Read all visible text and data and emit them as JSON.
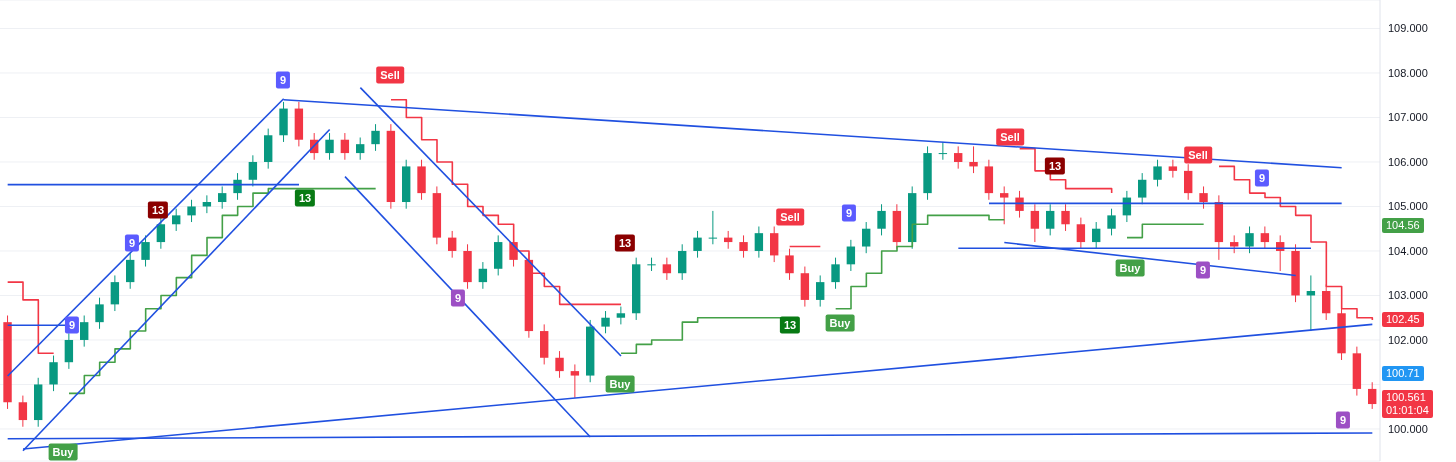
{
  "chart_data": {
    "type": "candlestick",
    "categories": [
      null,
      null,
      null,
      null,
      null,
      null,
      null,
      null,
      null,
      null,
      null,
      null,
      null,
      null,
      null,
      null,
      null,
      null,
      null,
      null,
      null,
      null,
      null,
      null,
      null,
      null,
      null,
      null,
      null,
      null,
      null,
      null,
      null,
      null,
      null,
      null,
      null,
      null,
      null,
      null,
      null,
      null,
      null,
      null,
      null,
      null,
      null,
      null,
      null,
      null,
      null,
      null,
      null,
      null,
      null,
      null,
      null,
      null,
      null,
      null,
      null,
      null,
      null,
      null,
      null,
      null,
      null,
      null,
      null,
      null,
      null,
      null,
      null,
      null,
      null,
      null,
      null,
      null,
      null,
      null,
      null,
      null,
      null,
      null,
      null,
      null,
      null,
      null,
      null,
      null
    ],
    "ylim": [
      99.28,
      109.64
    ],
    "yticks": [
      {
        "value": 100,
        "label": "100.000"
      },
      {
        "value": 101,
        "label": null
      },
      {
        "value": 102,
        "label": "102.000"
      },
      {
        "value": 103,
        "label": "103.000"
      },
      {
        "value": 104,
        "label": "104.000"
      },
      {
        "value": 105,
        "label": "105.000"
      },
      {
        "value": 106,
        "label": "106.000"
      },
      {
        "value": 107,
        "label": "107.000"
      },
      {
        "value": 108,
        "label": "108.000"
      },
      {
        "value": 109,
        "label": "109.000"
      }
    ],
    "grid": "y",
    "tick_labels": "y",
    "series": [
      {
        "colors": [
          "#f23645",
          "#f23645",
          "#089981",
          "#089981",
          "#089981",
          "#089981",
          "#089981",
          "#089981",
          "#089981",
          "#089981",
          "#089981",
          "#089981",
          "#089981",
          "#089981",
          "#089981",
          "#089981",
          "#089981",
          "#089981",
          "#089981",
          "#f23645",
          "#f23645",
          "#089981",
          "#f23645",
          "#089981",
          "#089981",
          "#f23645",
          "#089981",
          "#f23645",
          "#f23645",
          "#f23645",
          "#f23645",
          "#089981",
          "#089981",
          "#f23645",
          "#f23645",
          "#f23645",
          "#f23645",
          "#f23645",
          "#089981",
          "#089981",
          "#089981",
          "#089981",
          "#089981",
          "#f23645",
          "#089981",
          "#089981",
          "#089981",
          "#f23645",
          "#f23645",
          "#089981",
          "#f23645",
          "#f23645",
          "#f23645",
          "#089981",
          "#089981",
          "#089981",
          "#089981",
          "#089981",
          "#f23645",
          "#089981",
          "#089981",
          "#089981",
          "#f23645",
          "#f23645",
          "#f23645",
          "#f23645",
          "#f23645",
          "#f23645",
          "#089981",
          "#f23645",
          "#f23645",
          "#089981",
          "#089981",
          "#089981",
          "#089981",
          "#089981",
          "#f23645",
          "#f23645",
          "#f23645",
          "#f23645",
          "#f23645",
          "#089981",
          "#f23645",
          "#f23645",
          "#f23645",
          "#089981",
          "#f23645",
          "#f23645",
          "#f23645",
          "#f23645"
        ],
        "ohlc": [
          [
            102.4,
            102.55,
            100.45,
            100.6
          ],
          [
            100.6,
            100.75,
            100.05,
            100.2
          ],
          [
            100.2,
            101.15,
            100.05,
            101.0
          ],
          [
            101.0,
            101.65,
            100.85,
            101.5
          ],
          [
            101.5,
            102.15,
            101.35,
            102.0
          ],
          [
            102.0,
            102.55,
            101.85,
            102.4
          ],
          [
            102.4,
            102.95,
            102.25,
            102.8
          ],
          [
            102.8,
            103.45,
            102.65,
            103.3
          ],
          [
            103.3,
            103.95,
            103.15,
            103.8
          ],
          [
            103.8,
            104.35,
            103.65,
            104.2
          ],
          [
            104.2,
            104.75,
            104.05,
            104.6
          ],
          [
            104.6,
            104.95,
            104.45,
            104.8
          ],
          [
            104.8,
            105.15,
            104.65,
            105.0
          ],
          [
            105.0,
            105.25,
            104.85,
            105.1
          ],
          [
            105.1,
            105.45,
            104.95,
            105.3
          ],
          [
            105.3,
            105.75,
            105.15,
            105.6
          ],
          [
            105.6,
            106.15,
            105.45,
            106.0
          ],
          [
            106.0,
            106.75,
            105.85,
            106.6
          ],
          [
            106.6,
            107.35,
            106.45,
            107.2
          ],
          [
            107.2,
            107.35,
            106.35,
            106.5
          ],
          [
            106.5,
            106.65,
            106.05,
            106.2
          ],
          [
            106.2,
            106.65,
            106.05,
            106.5
          ],
          [
            106.5,
            106.65,
            106.05,
            106.2
          ],
          [
            106.2,
            106.55,
            106.05,
            106.4
          ],
          [
            106.4,
            106.85,
            106.25,
            106.7
          ],
          [
            106.7,
            106.85,
            104.95,
            105.1
          ],
          [
            105.1,
            106.05,
            104.95,
            105.9
          ],
          [
            105.9,
            106.05,
            105.15,
            105.3
          ],
          [
            105.3,
            105.45,
            104.15,
            104.3
          ],
          [
            104.3,
            104.45,
            103.85,
            104.0
          ],
          [
            104.0,
            104.15,
            103.15,
            103.3
          ],
          [
            103.3,
            103.75,
            103.15,
            103.6
          ],
          [
            103.6,
            104.35,
            103.45,
            104.2
          ],
          [
            104.2,
            104.35,
            103.65,
            103.8
          ],
          [
            103.8,
            103.95,
            102.05,
            102.2
          ],
          [
            102.2,
            102.35,
            101.45,
            101.6
          ],
          [
            101.6,
            101.75,
            101.15,
            101.3
          ],
          [
            101.3,
            101.45,
            100.7,
            101.2
          ],
          [
            101.2,
            102.45,
            101.05,
            102.3
          ],
          [
            102.3,
            102.65,
            102.15,
            102.5
          ],
          [
            102.5,
            102.75,
            102.35,
            102.6
          ],
          [
            102.6,
            103.85,
            102.45,
            103.7
          ],
          [
            103.7,
            103.85,
            103.55,
            103.7
          ],
          [
            103.7,
            103.85,
            103.35,
            103.5
          ],
          [
            103.5,
            104.15,
            103.35,
            104.0
          ],
          [
            104.0,
            104.45,
            103.85,
            104.3
          ],
          [
            104.3,
            104.9,
            104.15,
            104.3
          ],
          [
            104.3,
            104.45,
            104.05,
            104.2
          ],
          [
            104.2,
            104.35,
            103.85,
            104.0
          ],
          [
            104.0,
            104.55,
            103.85,
            104.4
          ],
          [
            104.4,
            104.55,
            103.75,
            103.9
          ],
          [
            103.9,
            104.05,
            103.35,
            103.5
          ],
          [
            103.5,
            103.65,
            102.75,
            102.9
          ],
          [
            102.9,
            103.45,
            102.75,
            103.3
          ],
          [
            103.3,
            103.85,
            103.15,
            103.7
          ],
          [
            103.7,
            104.25,
            103.55,
            104.1
          ],
          [
            104.1,
            104.65,
            103.95,
            104.5
          ],
          [
            104.5,
            105.05,
            104.35,
            104.9
          ],
          [
            104.9,
            105.05,
            104.05,
            104.2
          ],
          [
            104.2,
            105.45,
            104.05,
            105.3
          ],
          [
            105.3,
            106.35,
            105.15,
            106.2
          ],
          [
            106.2,
            106.45,
            106.05,
            106.2
          ],
          [
            106.2,
            106.35,
            105.85,
            106.0
          ],
          [
            106.0,
            106.35,
            105.75,
            105.9
          ],
          [
            105.9,
            106.05,
            105.15,
            105.3
          ],
          [
            105.3,
            105.45,
            104.6,
            105.2
          ],
          [
            105.2,
            105.35,
            104.75,
            104.9
          ],
          [
            104.9,
            105.05,
            104.2,
            104.5
          ],
          [
            104.5,
            105.05,
            104.35,
            104.9
          ],
          [
            104.9,
            105.05,
            104.45,
            104.6
          ],
          [
            104.6,
            104.75,
            104.05,
            104.2
          ],
          [
            104.2,
            104.65,
            104.05,
            104.5
          ],
          [
            104.5,
            104.95,
            104.35,
            104.8
          ],
          [
            104.8,
            105.35,
            104.65,
            105.2
          ],
          [
            105.2,
            105.75,
            105.05,
            105.6
          ],
          [
            105.6,
            106.05,
            105.45,
            105.9
          ],
          [
            105.9,
            106.05,
            105.65,
            105.8
          ],
          [
            105.8,
            105.95,
            105.15,
            105.3
          ],
          [
            105.3,
            105.45,
            104.95,
            105.1
          ],
          [
            105.1,
            105.25,
            103.8,
            104.2
          ],
          [
            104.2,
            104.35,
            103.95,
            104.1
          ],
          [
            104.1,
            104.55,
            103.95,
            104.4
          ],
          [
            104.4,
            104.55,
            104.05,
            104.2
          ],
          [
            104.2,
            104.35,
            103.55,
            104.0
          ],
          [
            104.0,
            104.15,
            102.85,
            103.0
          ],
          [
            103.0,
            103.45,
            102.2,
            103.1
          ],
          [
            103.1,
            103.25,
            102.45,
            102.6
          ],
          [
            102.6,
            102.75,
            101.55,
            101.7
          ],
          [
            101.7,
            101.85,
            100.75,
            100.9
          ],
          [
            100.9,
            101.05,
            100.45,
            100.56
          ]
        ]
      },
      {
        "type": "step",
        "color": "#f23645",
        "values": [
          103.3,
          102.9,
          101.7,
          101.7,
          null,
          null,
          null,
          null,
          null,
          null,
          null,
          null,
          null,
          null,
          null,
          null,
          null,
          null,
          null,
          null,
          null,
          null,
          null,
          null,
          null,
          107.4,
          107.0,
          106.5,
          106.0,
          105.5,
          105.0,
          104.8,
          104.6,
          104.0,
          103.5,
          103.2,
          102.8,
          102.8,
          102.8,
          102.8,
          102.8,
          null,
          null,
          null,
          null,
          null,
          null,
          null,
          null,
          null,
          null,
          104.1,
          104.1,
          104.1,
          null,
          null,
          null,
          null,
          null,
          null,
          null,
          null,
          null,
          null,
          null,
          null,
          106.3,
          105.8,
          105.6,
          105.4,
          105.4,
          105.4,
          105.3,
          null,
          null,
          null,
          null,
          null,
          null,
          105.9,
          105.6,
          105.3,
          105.2,
          105.0,
          104.8,
          104.2,
          103.2,
          102.7,
          102.5,
          102.45
        ]
      },
      {
        "type": "step",
        "color": "#43a047",
        "values": [
          null,
          null,
          null,
          null,
          100.8,
          101.2,
          101.5,
          101.8,
          102.2,
          102.7,
          103.0,
          103.4,
          103.9,
          104.3,
          104.8,
          105.0,
          105.3,
          105.4,
          105.4,
          105.4,
          105.4,
          105.4,
          105.4,
          105.4,
          105.4,
          null,
          null,
          null,
          null,
          null,
          null,
          null,
          null,
          null,
          null,
          null,
          null,
          null,
          null,
          null,
          101.7,
          101.9,
          102.0,
          102.0,
          102.4,
          102.5,
          102.5,
          102.5,
          102.5,
          102.5,
          102.5,
          102.5,
          null,
          null,
          102.7,
          103.2,
          103.5,
          104.0,
          104.1,
          104.6,
          104.8,
          104.8,
          104.8,
          104.8,
          104.7,
          104.7,
          null,
          null,
          null,
          null,
          null,
          null,
          null,
          104.3,
          104.6,
          104.6,
          104.6,
          104.6,
          104.6,
          null,
          null,
          null,
          null,
          null,
          null,
          null,
          null,
          null,
          null,
          null
        ]
      },
      {
        "type": "line",
        "color": "#2050e0",
        "values": [
          101.19,
          null,
          null,
          null,
          null,
          null,
          null,
          null,
          null,
          null,
          null,
          null,
          null,
          null,
          null,
          null,
          null,
          null,
          107.42,
          null,
          null,
          null,
          null,
          null,
          null,
          null,
          null,
          null,
          null,
          null,
          null,
          null,
          null,
          null,
          null,
          null,
          null,
          null,
          null,
          null,
          null,
          null,
          null,
          null,
          null,
          null,
          null,
          null,
          null,
          null,
          null,
          null,
          null,
          null,
          null,
          null,
          null,
          null,
          null,
          null,
          null,
          null,
          null,
          null,
          null,
          null,
          null,
          null,
          null,
          null,
          null,
          null,
          null,
          null,
          null,
          null,
          null,
          null,
          null,
          null,
          null,
          null,
          null,
          null,
          null,
          null,
          null,
          null,
          null,
          null
        ]
      },
      {
        "type": "line",
        "color": "#2050e0",
        "values": [
          null,
          99.51,
          null,
          null,
          null,
          null,
          null,
          null,
          null,
          null,
          null,
          null,
          null,
          null,
          null,
          null,
          null,
          null,
          null,
          null,
          null,
          106.73,
          null,
          null,
          null,
          null,
          null,
          null,
          null,
          null,
          null,
          null,
          null,
          null,
          null,
          null,
          null,
          null,
          null,
          null,
          null,
          null,
          null,
          null,
          null,
          null,
          null,
          null,
          null,
          null,
          null,
          null,
          null,
          null,
          null,
          null,
          null,
          null,
          null,
          null,
          null,
          null,
          null,
          null,
          null,
          null,
          null,
          null,
          null,
          null,
          null,
          null,
          null,
          null,
          null,
          null,
          null,
          null,
          null,
          null,
          null,
          null,
          null,
          null,
          null,
          null,
          null,
          null,
          null,
          null
        ]
      },
      {
        "type": "line",
        "color": "#2050e0",
        "values": [
          null,
          null,
          null,
          null,
          null,
          null,
          null,
          null,
          null,
          null,
          null,
          null,
          null,
          null,
          null,
          null,
          null,
          null,
          107.4,
          null,
          null,
          null,
          null,
          null,
          null,
          null,
          null,
          null,
          null,
          null,
          null,
          null,
          null,
          null,
          null,
          null,
          null,
          null,
          null,
          null,
          null,
          null,
          null,
          null,
          null,
          null,
          null,
          null,
          null,
          null,
          null,
          null,
          null,
          null,
          null,
          null,
          null,
          null,
          null,
          null,
          null,
          null,
          null,
          null,
          null,
          null,
          null,
          null,
          null,
          null,
          null,
          null,
          null,
          null,
          null,
          null,
          null,
          null,
          null,
          null,
          null,
          null,
          null,
          null,
          null,
          null,
          null,
          105.87,
          null,
          null
        ]
      },
      {
        "type": "line",
        "color": "#2050e0",
        "values": [
          null,
          null,
          null,
          null,
          null,
          null,
          null,
          null,
          null,
          null,
          null,
          null,
          null,
          null,
          null,
          null,
          null,
          null,
          null,
          null,
          null,
          null,
          null,
          107.67,
          null,
          null,
          null,
          null,
          null,
          null,
          null,
          null,
          null,
          null,
          null,
          null,
          null,
          null,
          null,
          null,
          101.64,
          null,
          null,
          null,
          null,
          null,
          null,
          null,
          null,
          null,
          null,
          null,
          null,
          null,
          null,
          null,
          null,
          null,
          null,
          null,
          null,
          null,
          null,
          null,
          null,
          null,
          null,
          null,
          null,
          null,
          null,
          null,
          null,
          null,
          null,
          null,
          null,
          null,
          null,
          null,
          null,
          null,
          null,
          null,
          null,
          null,
          null,
          null,
          null,
          null
        ]
      },
      {
        "type": "line",
        "color": "#2050e0",
        "values": [
          null,
          null,
          null,
          null,
          null,
          null,
          null,
          null,
          null,
          null,
          null,
          null,
          null,
          null,
          null,
          null,
          null,
          null,
          null,
          null,
          null,
          null,
          105.67,
          null,
          null,
          null,
          null,
          null,
          null,
          null,
          null,
          null,
          null,
          null,
          null,
          null,
          null,
          null,
          99.82,
          null,
          null,
          null,
          null,
          null,
          null,
          null,
          null,
          null,
          null,
          null,
          null,
          null,
          null,
          null,
          null,
          null,
          null,
          null,
          null,
          null,
          null,
          null,
          null,
          null,
          null,
          null,
          null,
          null,
          null,
          null,
          null,
          null,
          null,
          null,
          null,
          null,
          null,
          null,
          null,
          null,
          null,
          null,
          null,
          null,
          null,
          null,
          null,
          null,
          null,
          null
        ]
      },
      {
        "type": "line",
        "color": "#2050e0",
        "values": [
          99.78,
          null,
          null,
          null,
          null,
          null,
          null,
          null,
          null,
          null,
          null,
          null,
          null,
          null,
          null,
          null,
          null,
          null,
          null,
          null,
          null,
          null,
          null,
          null,
          null,
          null,
          null,
          null,
          null,
          null,
          null,
          null,
          null,
          null,
          null,
          null,
          null,
          null,
          null,
          null,
          null,
          null,
          null,
          null,
          null,
          null,
          null,
          null,
          null,
          null,
          null,
          null,
          null,
          null,
          null,
          null,
          null,
          null,
          null,
          null,
          null,
          null,
          null,
          null,
          null,
          null,
          null,
          null,
          null,
          null,
          null,
          null,
          null,
          null,
          null,
          null,
          null,
          null,
          null,
          null,
          null,
          null,
          null,
          null,
          null,
          null,
          null,
          null,
          null,
          99.91
        ]
      },
      {
        "type": "line",
        "color": "#2050e0",
        "values": [
          null,
          99.55,
          null,
          null,
          null,
          null,
          null,
          null,
          null,
          null,
          null,
          null,
          null,
          null,
          null,
          null,
          null,
          null,
          null,
          null,
          null,
          null,
          null,
          null,
          null,
          null,
          null,
          null,
          null,
          null,
          null,
          null,
          null,
          null,
          null,
          null,
          null,
          null,
          null,
          null,
          null,
          null,
          null,
          null,
          null,
          null,
          null,
          null,
          null,
          null,
          null,
          null,
          null,
          null,
          null,
          null,
          null,
          null,
          null,
          null,
          null,
          null,
          null,
          null,
          null,
          null,
          null,
          null,
          null,
          null,
          null,
          null,
          null,
          null,
          null,
          null,
          null,
          null,
          null,
          null,
          null,
          null,
          null,
          null,
          null,
          null,
          null,
          null,
          null,
          102.35
        ]
      },
      {
        "type": "line",
        "color": "#2050e0",
        "values": [
          105.49,
          null,
          null,
          null,
          null,
          null,
          null,
          null,
          null,
          null,
          null,
          null,
          null,
          null,
          null,
          null,
          null,
          null,
          null,
          105.49,
          null,
          null,
          null,
          null,
          null,
          null,
          null,
          null,
          null,
          null,
          null,
          null,
          null,
          null,
          null,
          null,
          null,
          null,
          null,
          null,
          null,
          null,
          null,
          null,
          null,
          null,
          null,
          null,
          null,
          null,
          null,
          null,
          null,
          null,
          null,
          null,
          null,
          null,
          null,
          null,
          null,
          null,
          null,
          null,
          null,
          null,
          null,
          null,
          null,
          null,
          null,
          null,
          null,
          null,
          null,
          null,
          null,
          null,
          null,
          null,
          null,
          null,
          null,
          null,
          null,
          null,
          null,
          null,
          null,
          null
        ]
      },
      {
        "type": "line",
        "color": "#2050e0",
        "values": [
          102.33,
          null,
          null,
          null,
          102.33,
          null,
          null,
          null,
          null,
          null,
          null,
          null,
          null,
          null,
          null,
          null,
          null,
          null,
          null,
          null,
          null,
          null,
          null,
          null,
          null,
          null,
          null,
          null,
          null,
          null,
          null,
          null,
          null,
          null,
          null,
          null,
          null,
          null,
          null,
          null,
          null,
          null,
          null,
          null,
          null,
          null,
          null,
          null,
          null,
          null,
          null,
          null,
          null,
          null,
          null,
          null,
          null,
          null,
          null,
          null,
          null,
          null,
          null,
          null,
          null,
          null,
          null,
          null,
          null,
          null,
          null,
          null,
          null,
          null,
          null,
          null,
          null,
          null,
          null,
          null,
          null,
          null,
          null,
          null,
          null,
          null,
          null,
          null,
          null,
          null
        ]
      },
      {
        "type": "line",
        "color": "#2050e0",
        "values": [
          null,
          null,
          null,
          null,
          null,
          null,
          null,
          null,
          null,
          null,
          null,
          null,
          null,
          null,
          null,
          null,
          null,
          null,
          null,
          null,
          null,
          null,
          null,
          null,
          null,
          null,
          null,
          null,
          null,
          null,
          null,
          null,
          null,
          null,
          null,
          null,
          null,
          null,
          null,
          null,
          null,
          null,
          null,
          null,
          null,
          null,
          null,
          null,
          null,
          null,
          null,
          null,
          null,
          null,
          null,
          null,
          null,
          null,
          null,
          null,
          null,
          null,
          null,
          null,
          105.07,
          null,
          null,
          null,
          null,
          null,
          null,
          null,
          null,
          null,
          null,
          null,
          null,
          null,
          null,
          null,
          null,
          null,
          null,
          null,
          null,
          null,
          null,
          105.07,
          null,
          null
        ]
      },
      {
        "type": "line",
        "color": "#2050e0",
        "values": [
          null,
          null,
          null,
          null,
          null,
          null,
          null,
          null,
          null,
          null,
          null,
          null,
          null,
          null,
          null,
          null,
          null,
          null,
          null,
          null,
          null,
          null,
          null,
          null,
          null,
          null,
          null,
          null,
          null,
          null,
          null,
          null,
          null,
          null,
          null,
          null,
          null,
          null,
          null,
          null,
          null,
          null,
          null,
          null,
          null,
          null,
          null,
          null,
          null,
          null,
          null,
          null,
          null,
          null,
          null,
          null,
          null,
          null,
          null,
          null,
          null,
          null,
          104.06,
          null,
          null,
          null,
          null,
          null,
          null,
          null,
          null,
          null,
          null,
          null,
          null,
          null,
          null,
          null,
          null,
          null,
          null,
          null,
          null,
          null,
          null,
          104.06,
          null,
          null,
          null,
          null
        ]
      },
      {
        "type": "line",
        "color": "#2050e0",
        "values": [
          null,
          null,
          null,
          null,
          null,
          null,
          null,
          null,
          null,
          null,
          null,
          null,
          null,
          null,
          null,
          null,
          null,
          null,
          null,
          null,
          null,
          null,
          null,
          null,
          null,
          null,
          null,
          null,
          null,
          null,
          null,
          null,
          null,
          null,
          null,
          null,
          null,
          null,
          null,
          null,
          null,
          null,
          null,
          null,
          null,
          null,
          null,
          null,
          null,
          null,
          null,
          null,
          null,
          null,
          null,
          null,
          null,
          null,
          null,
          null,
          null,
          null,
          null,
          null,
          null,
          104.19,
          null,
          null,
          null,
          null,
          null,
          null,
          null,
          null,
          null,
          null,
          null,
          null,
          null,
          null,
          null,
          null,
          null,
          null,
          103.45,
          null,
          null,
          null,
          null,
          null
        ]
      }
    ],
    "annotations": [
      "9",
      "Sell",
      "13",
      "9",
      "9",
      "13",
      "13",
      "9",
      "Sell",
      "9",
      "13",
      "Buy",
      "Buy",
      "Buy",
      "Sell",
      "13",
      "Sell",
      "9",
      "Buy",
      "9",
      "9",
      {
        "text": "104.56",
        "y": 104.56
      },
      {
        "text": "102.45",
        "y": 102.45
      },
      "100.71",
      "100.561",
      "01:01:04"
    ]
  }
}
